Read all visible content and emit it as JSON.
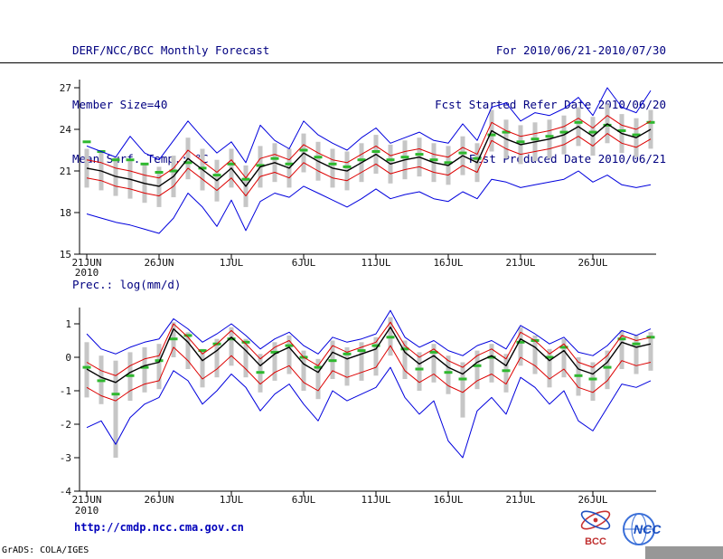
{
  "header": {
    "title": "DERF/NCC/BCC Monthly Forecast",
    "member_size": "Member Size=40",
    "for_range": "For 2010/06/21-2010/07/30",
    "refer_date": "Fcst Started Refer Date 2010/06/20",
    "produced_date": "Fcst Produced Date 2010/06/21"
  },
  "footer": {
    "url": "http://cmdp.ncc.cma.gov.cn",
    "credit": "GrADS: COLA/IGES",
    "logo_bcc": "BCC",
    "logo_ncc": "NCC"
  },
  "colors": {
    "header_text": "#000080",
    "blue_line": "#0000dd",
    "red_line": "#dd0000",
    "black_line": "#000000",
    "green_marker": "#2eb82e",
    "gray_bar": "#c6c6c6",
    "url_text": "#0000bb"
  },
  "chart_data": [
    {
      "id": "temp",
      "type": "line",
      "title": "Mean Surf. Temp.: °C",
      "xlabel": "",
      "ylabel": "°C",
      "ylim": [
        15,
        27
      ],
      "yticks": [
        15,
        18,
        21,
        24,
        27
      ],
      "n_days": 40,
      "x_tick_labels": [
        "21JUN",
        "26JUN",
        "1JUL",
        "6JUL",
        "11JUL",
        "16JUL",
        "21JUL",
        "26JUL"
      ],
      "x_tick_days": [
        0,
        5,
        10,
        15,
        20,
        25,
        30,
        35
      ],
      "x_year_label": "2010",
      "series": [
        {
          "name": "blue-upper",
          "color": "#0000dd",
          "width": 1,
          "values": [
            22.8,
            22.4,
            22.0,
            23.5,
            22.3,
            21.8,
            23.2,
            24.6,
            23.4,
            22.3,
            23.1,
            21.6,
            24.3,
            23.2,
            22.6,
            24.6,
            23.6,
            23.0,
            22.5,
            23.4,
            24.1,
            23.0,
            23.4,
            23.8,
            23.2,
            23.0,
            24.4,
            23.2,
            25.6,
            25.9,
            24.6,
            25.2,
            25.0,
            25.5,
            26.3,
            25.0,
            27.0,
            25.6,
            25.2,
            26.8
          ]
        },
        {
          "name": "blue-lower",
          "color": "#0000dd",
          "width": 1,
          "values": [
            17.9,
            17.6,
            17.3,
            17.1,
            16.8,
            16.5,
            17.6,
            19.4,
            18.4,
            17.0,
            18.9,
            16.7,
            18.8,
            19.4,
            19.1,
            19.9,
            19.4,
            18.9,
            18.4,
            19.0,
            19.7,
            19.0,
            19.3,
            19.5,
            19.0,
            18.8,
            19.5,
            19.0,
            20.4,
            20.2,
            19.8,
            20.0,
            20.2,
            20.4,
            21.0,
            20.2,
            20.7,
            20.0,
            19.8,
            20.0
          ]
        },
        {
          "name": "red-upper",
          "color": "#dd0000",
          "width": 1,
          "values": [
            21.8,
            21.6,
            21.2,
            21.0,
            20.7,
            20.5,
            21.2,
            22.5,
            21.7,
            20.9,
            21.8,
            20.5,
            21.9,
            22.2,
            21.8,
            22.9,
            22.3,
            21.8,
            21.6,
            22.2,
            22.8,
            22.1,
            22.4,
            22.6,
            22.2,
            22.0,
            22.7,
            22.2,
            24.5,
            23.9,
            23.5,
            23.7,
            23.9,
            24.2,
            24.8,
            24.1,
            25.0,
            24.3,
            24.0,
            24.6
          ]
        },
        {
          "name": "red-lower",
          "color": "#dd0000",
          "width": 1,
          "values": [
            20.5,
            20.3,
            19.9,
            19.7,
            19.4,
            19.2,
            19.9,
            21.2,
            20.4,
            19.6,
            20.5,
            19.2,
            20.6,
            20.9,
            20.5,
            21.6,
            21.0,
            20.5,
            20.3,
            20.9,
            21.5,
            20.8,
            21.1,
            21.3,
            20.9,
            20.7,
            21.4,
            20.9,
            23.2,
            22.6,
            22.2,
            22.4,
            22.6,
            22.9,
            23.5,
            22.8,
            23.7,
            23.0,
            22.7,
            23.3
          ]
        },
        {
          "name": "black-mean",
          "color": "#000000",
          "width": 1.4,
          "values": [
            21.2,
            21.0,
            20.6,
            20.4,
            20.1,
            19.9,
            20.6,
            21.9,
            21.1,
            20.3,
            21.2,
            19.9,
            21.3,
            21.6,
            21.2,
            22.3,
            21.7,
            21.2,
            21.0,
            21.6,
            22.2,
            21.5,
            21.8,
            22.0,
            21.6,
            21.4,
            22.1,
            21.6,
            23.9,
            23.3,
            22.9,
            23.1,
            23.3,
            23.6,
            24.2,
            23.5,
            24.4,
            23.7,
            23.4,
            24.0
          ]
        }
      ],
      "bars": {
        "name": "gray-spread-bars",
        "color": "#c6c6c6",
        "low": [
          19.8,
          19.6,
          19.2,
          19.0,
          18.7,
          18.4,
          19.1,
          20.4,
          19.6,
          18.8,
          19.8,
          18.4,
          19.8,
          20.2,
          19.8,
          20.9,
          20.3,
          19.8,
          19.6,
          20.2,
          20.8,
          20.1,
          20.4,
          20.6,
          20.2,
          20.0,
          20.7,
          20.2,
          22.4,
          21.9,
          21.5,
          21.7,
          21.9,
          22.2,
          22.8,
          22.1,
          23.0,
          22.3,
          22.0,
          22.6
        ],
        "high": [
          22.6,
          22.4,
          22.0,
          21.8,
          21.5,
          21.3,
          22.1,
          23.4,
          22.6,
          21.8,
          22.6,
          21.4,
          22.8,
          23.0,
          22.6,
          23.7,
          23.1,
          22.6,
          22.4,
          23.0,
          23.6,
          22.9,
          23.2,
          23.4,
          23.0,
          22.8,
          23.5,
          23.0,
          25.4,
          24.7,
          24.3,
          24.5,
          24.7,
          25.0,
          25.6,
          24.9,
          25.8,
          25.1,
          24.8,
          25.4
        ]
      },
      "markers": {
        "name": "green-dash-markers",
        "color": "#2eb82e",
        "values": [
          23.1,
          22.4,
          21.8,
          21.8,
          21.5,
          20.9,
          21.0,
          21.6,
          21.2,
          20.7,
          21.5,
          20.4,
          21.4,
          21.9,
          21.5,
          22.5,
          22.0,
          21.5,
          21.3,
          21.8,
          22.4,
          21.8,
          22.0,
          22.2,
          21.8,
          21.6,
          22.3,
          21.9,
          23.6,
          23.8,
          23.1,
          23.3,
          23.5,
          23.8,
          24.5,
          23.8,
          24.3,
          23.9,
          23.6,
          24.5
        ]
      }
    },
    {
      "id": "prec",
      "type": "line",
      "title": "Prec.: log(mm/d)",
      "xlabel": "",
      "ylabel": "log(mm/d)",
      "ylim": [
        -4,
        1
      ],
      "yticks": [
        -4,
        -3,
        -2,
        -1,
        0,
        1
      ],
      "n_days": 40,
      "x_tick_labels": [
        "21JUN",
        "26JUN",
        "1JUL",
        "6JUL",
        "11JUL",
        "16JUL",
        "21JUL",
        "26JUL"
      ],
      "x_tick_days": [
        0,
        5,
        10,
        15,
        20,
        25,
        30,
        35
      ],
      "x_year_label": "2010",
      "series": [
        {
          "name": "blue-upper",
          "color": "#0000dd",
          "width": 1,
          "values": [
            0.7,
            0.25,
            0.1,
            0.3,
            0.45,
            0.55,
            1.15,
            0.85,
            0.45,
            0.7,
            1.0,
            0.65,
            0.25,
            0.55,
            0.75,
            0.35,
            0.1,
            0.6,
            0.45,
            0.55,
            0.7,
            1.4,
            0.6,
            0.3,
            0.5,
            0.2,
            0.05,
            0.35,
            0.5,
            0.25,
            0.95,
            0.7,
            0.4,
            0.6,
            0.15,
            0.05,
            0.35,
            0.8,
            0.65,
            0.85
          ]
        },
        {
          "name": "blue-lower",
          "color": "#0000dd",
          "width": 1,
          "values": [
            -2.1,
            -1.9,
            -2.6,
            -1.8,
            -1.4,
            -1.2,
            -0.4,
            -0.7,
            -1.4,
            -1.0,
            -0.5,
            -0.9,
            -1.6,
            -1.1,
            -0.8,
            -1.4,
            -1.9,
            -1.0,
            -1.3,
            -1.1,
            -0.9,
            -0.3,
            -1.2,
            -1.7,
            -1.3,
            -2.5,
            -3.0,
            -1.6,
            -1.2,
            -1.7,
            -0.6,
            -0.9,
            -1.4,
            -1.0,
            -1.9,
            -2.2,
            -1.5,
            -0.8,
            -0.9,
            -0.7
          ]
        },
        {
          "name": "red-upper",
          "color": "#dd0000",
          "width": 1,
          "values": [
            -0.15,
            -0.4,
            -0.55,
            -0.25,
            -0.05,
            0.05,
            1.0,
            0.6,
            0.1,
            0.4,
            0.8,
            0.4,
            -0.05,
            0.3,
            0.5,
            0.0,
            -0.25,
            0.35,
            0.15,
            0.3,
            0.45,
            1.05,
            0.35,
            0.0,
            0.25,
            -0.1,
            -0.3,
            0.05,
            0.25,
            -0.05,
            0.75,
            0.5,
            0.1,
            0.4,
            -0.15,
            -0.3,
            0.05,
            0.65,
            0.5,
            0.6
          ]
        },
        {
          "name": "red-lower",
          "color": "#dd0000",
          "width": 1,
          "values": [
            -0.9,
            -1.15,
            -1.3,
            -1.0,
            -0.8,
            -0.7,
            0.3,
            -0.1,
            -0.65,
            -0.35,
            0.05,
            -0.35,
            -0.8,
            -0.45,
            -0.25,
            -0.75,
            -1.0,
            -0.4,
            -0.6,
            -0.45,
            -0.3,
            0.35,
            -0.4,
            -0.75,
            -0.5,
            -0.85,
            -1.05,
            -0.7,
            -0.5,
            -0.8,
            0.0,
            -0.25,
            -0.65,
            -0.35,
            -0.9,
            -1.05,
            -0.7,
            -0.1,
            -0.25,
            -0.15
          ]
        },
        {
          "name": "black-mean",
          "color": "#000000",
          "width": 1.4,
          "values": [
            -0.35,
            -0.6,
            -0.75,
            -0.45,
            -0.25,
            -0.15,
            0.85,
            0.45,
            -0.1,
            0.2,
            0.6,
            0.2,
            -0.25,
            0.1,
            0.3,
            -0.2,
            -0.45,
            0.15,
            -0.05,
            0.1,
            0.25,
            0.9,
            0.15,
            -0.2,
            0.05,
            -0.3,
            -0.5,
            -0.15,
            0.05,
            -0.25,
            0.55,
            0.3,
            -0.1,
            0.2,
            -0.35,
            -0.5,
            -0.15,
            0.45,
            0.3,
            0.4
          ]
        }
      ],
      "bars": {
        "name": "gray-spread-bars",
        "color": "#c6c6c6",
        "low": [
          -1.2,
          -1.4,
          -3.0,
          -1.3,
          -1.05,
          -0.95,
          0.0,
          -0.35,
          -0.9,
          -0.6,
          -0.25,
          -0.6,
          -1.05,
          -0.7,
          -0.5,
          -1.0,
          -1.25,
          -0.65,
          -0.85,
          -0.7,
          -0.55,
          0.05,
          -0.65,
          -1.0,
          -0.75,
          -1.1,
          -1.8,
          -0.95,
          -0.75,
          -1.05,
          -0.25,
          -0.5,
          -0.9,
          -0.6,
          -1.15,
          -1.3,
          -0.95,
          -0.35,
          -0.5,
          -0.4
        ],
        "high": [
          0.45,
          0.05,
          -0.1,
          0.15,
          0.3,
          0.4,
          1.05,
          0.75,
          0.25,
          0.55,
          0.9,
          0.55,
          0.1,
          0.45,
          0.65,
          0.2,
          -0.05,
          0.5,
          0.3,
          0.45,
          0.6,
          1.2,
          0.5,
          0.15,
          0.4,
          0.05,
          -0.15,
          0.2,
          0.4,
          0.1,
          0.9,
          0.65,
          0.25,
          0.55,
          0.0,
          -0.15,
          0.2,
          0.8,
          0.65,
          0.75
        ]
      },
      "markers": {
        "name": "green-dash-markers",
        "color": "#2eb82e",
        "values": [
          -0.3,
          -0.7,
          -1.1,
          -0.55,
          -0.3,
          -0.1,
          0.55,
          0.65,
          0.2,
          0.4,
          0.55,
          0.45,
          -0.45,
          0.15,
          0.35,
          0.0,
          -0.3,
          -0.1,
          0.1,
          0.2,
          0.35,
          0.6,
          0.25,
          -0.35,
          0.15,
          -0.45,
          -0.65,
          -0.25,
          0.0,
          -0.4,
          0.45,
          0.5,
          0.0,
          0.3,
          -0.55,
          -0.65,
          -0.3,
          0.55,
          0.4,
          0.6
        ]
      }
    }
  ]
}
